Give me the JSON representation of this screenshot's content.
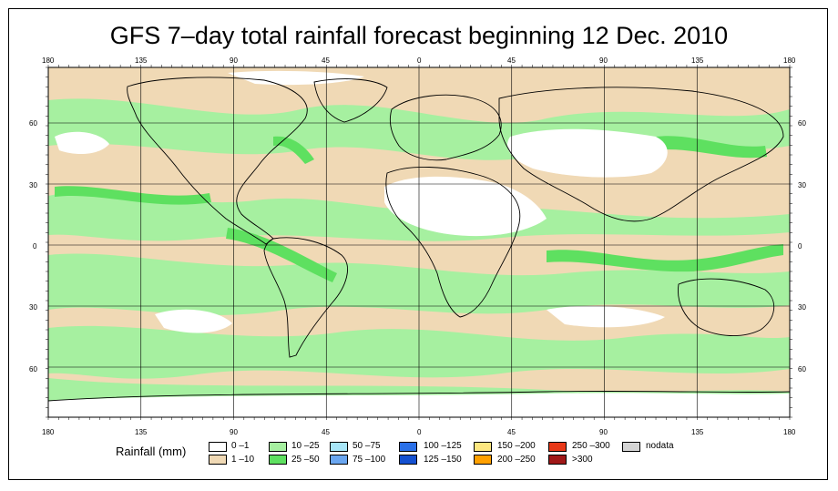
{
  "title": "GFS 7–day total rainfall forecast beginning 12 Dec. 2010",
  "map": {
    "projection": "cylindrical equidistant",
    "lon_labels_top": [
      "180",
      "135",
      "90",
      "45",
      "0",
      "45",
      "90",
      "135",
      "180"
    ],
    "lon_labels_bottom": [
      "180",
      "135",
      "90",
      "45",
      "0",
      "45",
      "90",
      "135",
      "180"
    ],
    "lat_labels": [
      "60",
      "30",
      "0",
      "30",
      "60"
    ]
  },
  "legend": {
    "title": "Rainfall (mm)",
    "items": [
      {
        "label": "0 –1",
        "color": "#ffffff"
      },
      {
        "label": "1 –10",
        "color": "#f0d9b5"
      },
      {
        "label": "10 –25",
        "color": "#a6f0a0"
      },
      {
        "label": "25 –50",
        "color": "#5ee060"
      },
      {
        "label": "50 –75",
        "color": "#a8e6f8"
      },
      {
        "label": "75 –100",
        "color": "#6aa6f0"
      },
      {
        "label": "100 –125",
        "color": "#2a70e8"
      },
      {
        "label": "125 –150",
        "color": "#1450d0"
      },
      {
        "label": "150 –200",
        "color": "#fde780"
      },
      {
        "label": "200 –250",
        "color": "#ffa000"
      },
      {
        "label": "250 –300",
        "color": "#e83818"
      },
      {
        "label": ">300",
        "color": "#a01818"
      },
      {
        "label": "nodata",
        "color": "#d4d4d4"
      }
    ]
  },
  "colors": {
    "ocean_low": "#f0d9b5",
    "moderate": "#a6f0a0",
    "heavy": "#5ee060",
    "dry": "#ffffff",
    "coast": "#000000"
  }
}
